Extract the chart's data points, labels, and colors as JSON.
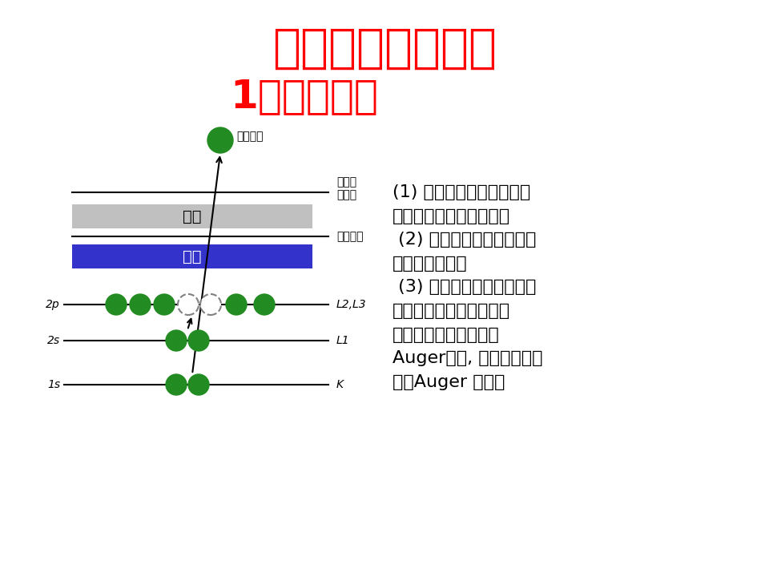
{
  "title1": "二、俄歇电子能谱",
  "title2": "1、基本原理",
  "title1_color": "#FF0000",
  "title2_color": "#FF0000",
  "bg_color": "#FFFFFF",
  "description": "(1) 原子内某一内层电子被\n激发电离从而形成空位，\n (2) 一个较高能级的电子跃\n迁到该空位上，\n (3) 再接着另一个电子被激\n发发射，形成无辐射跃迁\n过程，这一过程被称为\nAuger效应, 被发射的电子\n称为Auger 电子。",
  "label_free_electron": "自由电\n子能级",
  "label_fermi": "费米能级",
  "label_guide_band": "导带",
  "label_price_band": "价带",
  "label_auger": "俄歇电子",
  "label_2p": "2p",
  "label_2s": "2s",
  "label_1s": "1s",
  "label_L2L3": "L2,L3",
  "label_L1": "L1",
  "label_K": "K",
  "guide_band_color": "#C0C0C0",
  "price_band_color": "#3333CC",
  "electron_color": "#228B22",
  "line_color": "#000000"
}
